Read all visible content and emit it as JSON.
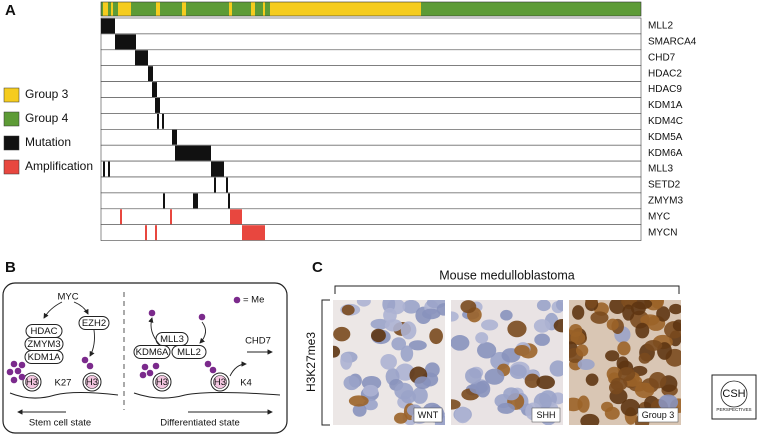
{
  "panel_a": {
    "letter": "A",
    "legend": [
      "Group 3",
      "Group 4",
      "Mutation",
      "Amplification"
    ],
    "genes": [
      "MLL2",
      "SMARCA4",
      "CHD7",
      "HDAC2",
      "HDAC9",
      "KDM1A",
      "KDM4C",
      "KDM5A",
      "KDM6A",
      "MLL3",
      "SETD2",
      "ZMYM3",
      "MYC",
      "MYCN"
    ]
  },
  "panel_b": {
    "letter": "B",
    "myc": "MYC",
    "hdac": "HDAC",
    "zmym3": "ZMYM3",
    "kdm1a": "KDM1A",
    "ezh2": "EZH2",
    "k27": "K27",
    "h3": "H3",
    "me": "= Me",
    "mll3": "MLL3",
    "kdm6a": "KDM6A",
    "mll2": "MLL2",
    "chd7": "CHD7",
    "k4": "K4",
    "left_state": "Stem cell state",
    "right_state": "Differentiated state"
  },
  "panel_c": {
    "letter": "C",
    "title": "Mouse medulloblastoma",
    "ylabel": "H3K27me3",
    "images": [
      "WNT",
      "SHH",
      "Group 3"
    ]
  },
  "logo": {
    "line1": "CSH",
    "line2": "PERSPECTIVES"
  }
}
